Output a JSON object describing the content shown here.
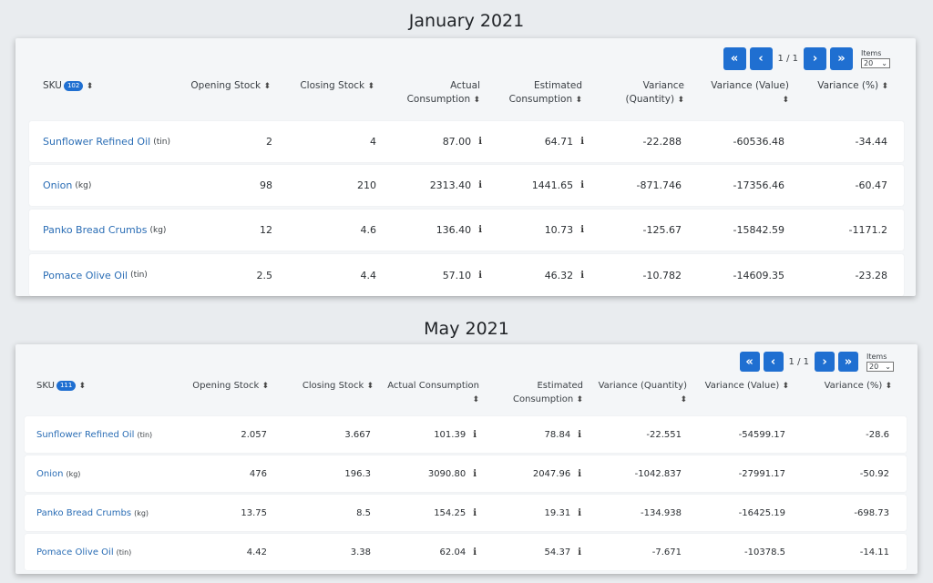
{
  "sections": [
    {
      "title": "January 2021",
      "pager": {
        "first": "«",
        "prev": "‹",
        "info": "1 / 1",
        "next": "›",
        "last": "»",
        "items_label": "Items",
        "items_value": "20"
      },
      "sku_header": "SKU",
      "sku_count": "102",
      "headers": {
        "opening": "Opening Stock",
        "closing": "Closing Stock",
        "actual_1": "Actual",
        "actual_2": "Consumption",
        "estimated_1": "Estimated",
        "estimated_2": "Consumption",
        "var_qty_1": "Variance",
        "var_qty_2": "(Quantity)",
        "var_val": "Variance (Value)",
        "var_pct": "Variance (%)"
      },
      "rows": [
        {
          "name": "Sunflower Refined Oil",
          "unit": "(tin)",
          "opening": "2",
          "closing": "4",
          "actual": "87.00",
          "estimated": "64.71",
          "var_qty": "-22.288",
          "var_val": "-60536.48",
          "var_pct": "-34.44"
        },
        {
          "name": "Onion",
          "unit": "(kg)",
          "opening": "98",
          "closing": "210",
          "actual": "2313.40",
          "estimated": "1441.65",
          "var_qty": "-871.746",
          "var_val": "-17356.46",
          "var_pct": "-60.47"
        },
        {
          "name": "Panko Bread Crumbs",
          "unit": "(kg)",
          "opening": "12",
          "closing": "4.6",
          "actual": "136.40",
          "estimated": "10.73",
          "var_qty": "-125.67",
          "var_val": "-15842.59",
          "var_pct": "-1171.2"
        },
        {
          "name": "Pomace Olive Oil",
          "unit": "(tin)",
          "opening": "2.5",
          "closing": "4.4",
          "actual": "57.10",
          "estimated": "46.32",
          "var_qty": "-10.782",
          "var_val": "-14609.35",
          "var_pct": "-23.28"
        }
      ]
    },
    {
      "title": "May 2021",
      "pager": {
        "first": "«",
        "prev": "‹",
        "info": "1 / 1",
        "next": "›",
        "last": "»",
        "items_label": "Items",
        "items_value": "20"
      },
      "sku_header": "SKU",
      "sku_count": "111",
      "headers": {
        "opening": "Opening Stock",
        "closing": "Closing Stock",
        "actual_1": "Actual Consumption",
        "estimated_1": "Estimated",
        "estimated_2": "Consumption",
        "var_qty_1": "Variance (Quantity)",
        "var_val": "Variance (Value)",
        "var_pct": "Variance (%)"
      },
      "rows": [
        {
          "name": "Sunflower Refined Oil",
          "unit": "(tin)",
          "opening": "2.057",
          "closing": "3.667",
          "actual": "101.39",
          "estimated": "78.84",
          "var_qty": "-22.551",
          "var_val": "-54599.17",
          "var_pct": "-28.6"
        },
        {
          "name": "Onion",
          "unit": "(kg)",
          "opening": "476",
          "closing": "196.3",
          "actual": "3090.80",
          "estimated": "2047.96",
          "var_qty": "-1042.837",
          "var_val": "-27991.17",
          "var_pct": "-50.92"
        },
        {
          "name": "Panko Bread Crumbs",
          "unit": "(kg)",
          "opening": "13.75",
          "closing": "8.5",
          "actual": "154.25",
          "estimated": "19.31",
          "var_qty": "-134.938",
          "var_val": "-16425.19",
          "var_pct": "-698.73"
        },
        {
          "name": "Pomace Olive Oil",
          "unit": "(tin)",
          "opening": "4.42",
          "closing": "3.38",
          "actual": "62.04",
          "estimated": "54.37",
          "var_qty": "-7.671",
          "var_val": "-10378.5",
          "var_pct": "-14.11"
        }
      ]
    }
  ],
  "icons": {
    "sort": "⬍",
    "info": "i",
    "select_arrow": "⌄"
  },
  "colors": {
    "accent": "#1f6fd1",
    "link": "#2a6db5",
    "background": "#e9ecef",
    "panel": "#f4f6f8",
    "row": "#ffffff"
  }
}
